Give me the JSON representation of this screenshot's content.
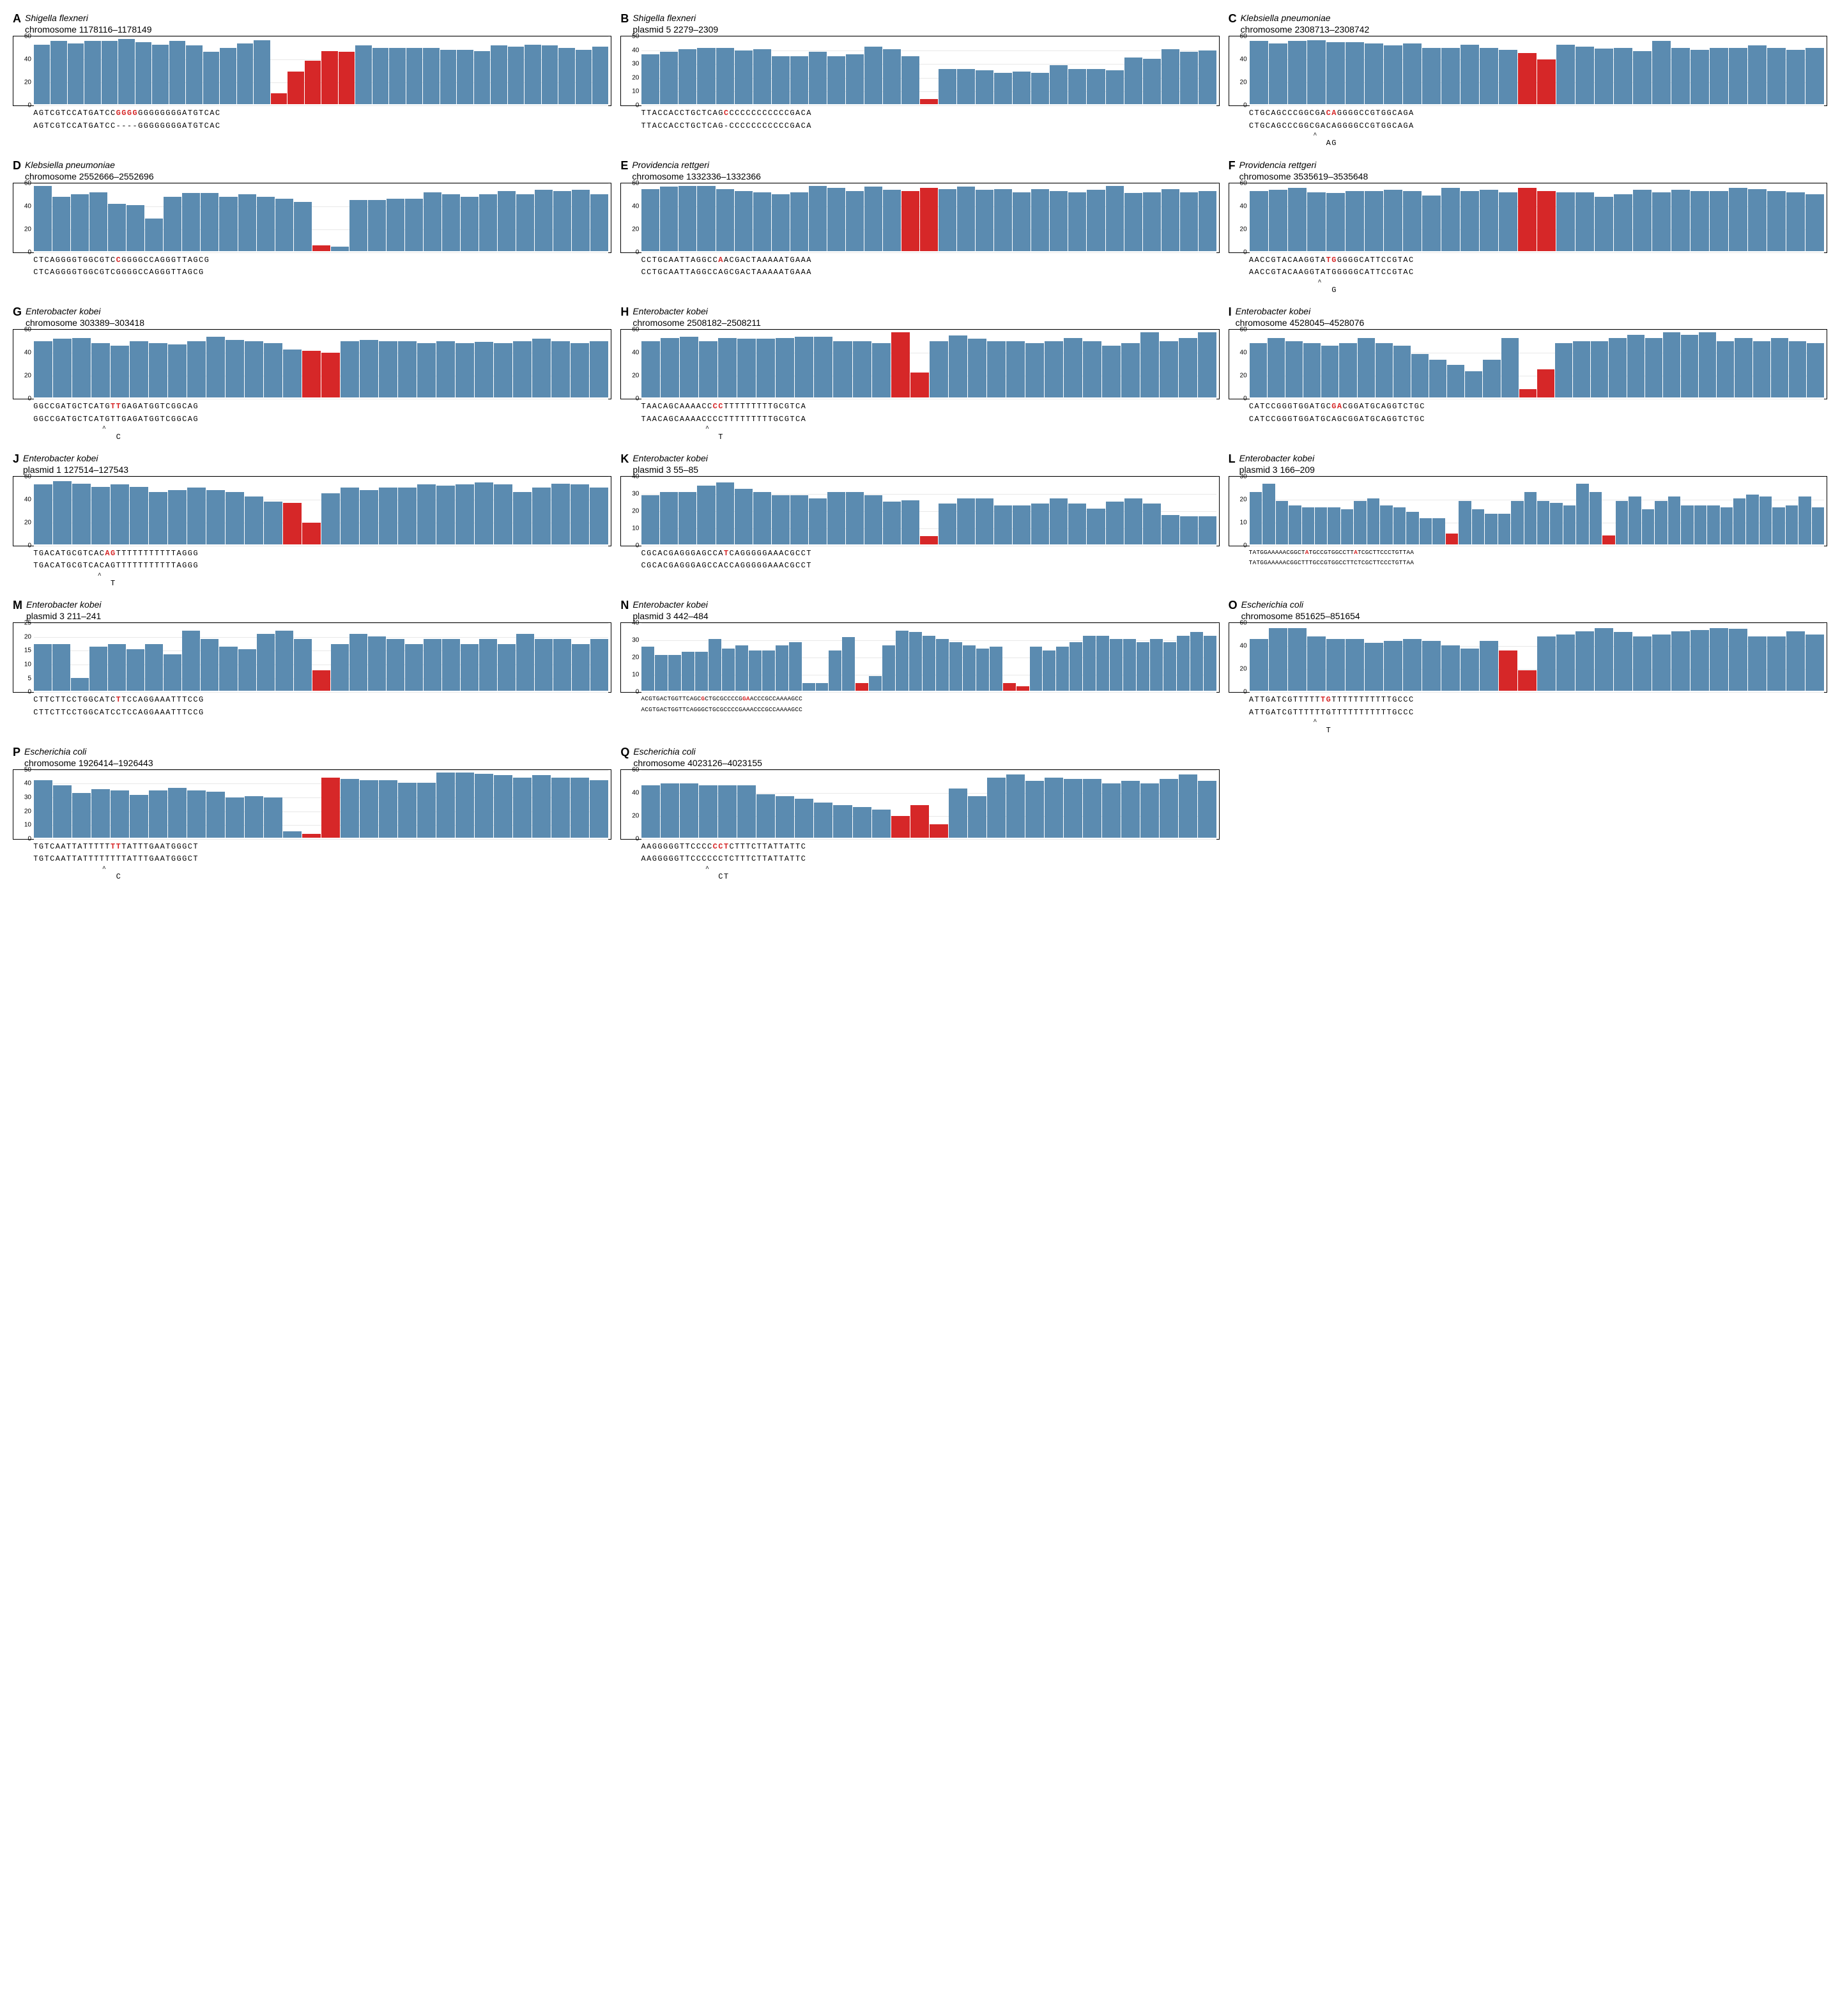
{
  "colors": {
    "blue": "#5b8bb0",
    "red": "#d62728",
    "grid": "#e8e8e8",
    "bg": "#ffffff"
  },
  "bar_width_rel": 0.9,
  "panels": [
    {
      "id": "A",
      "letter": "A",
      "organism": "Shigella flexneri",
      "location": "chromosome 1178116–1178149",
      "ylim": [
        0,
        60
      ],
      "ytick_step": 20,
      "values": [
        55,
        58,
        56,
        58,
        58,
        63,
        57,
        55,
        58,
        54,
        48,
        52,
        56,
        59,
        10,
        30,
        40,
        49,
        48,
        54,
        52,
        52,
        52,
        52,
        50,
        50,
        49,
        54,
        53,
        55,
        54,
        52,
        50,
        53
      ],
      "highlight_idx": [
        14,
        15,
        16,
        17,
        18
      ],
      "seq1": "AGTCGTCCATGATCCGGGGGGGGGGGGATGTCAC",
      "seq2": "AGTCGTCCATGATCC----GGGGGGGGATGTCAC",
      "red_chars_seq1": [
        15,
        16,
        17,
        18
      ],
      "wide": false
    },
    {
      "id": "B",
      "letter": "B",
      "organism": "Shigella flexneri",
      "location": "plasmid 5 2279–2309",
      "ylim": [
        0,
        50
      ],
      "ytick_step": 10,
      "values": [
        38,
        40,
        42,
        43,
        43,
        41,
        42,
        37,
        37,
        40,
        37,
        38,
        44,
        42,
        37,
        4,
        27,
        27,
        26,
        24,
        25,
        24,
        30,
        27,
        27,
        26,
        36,
        35,
        42,
        40,
        41
      ],
      "highlight_idx": [
        15
      ],
      "seq1": "TTACCACCTGCTCAGCCCCCCCCCCCCGACA",
      "seq2": "TTACCACCTGCTCAG-CCCCCCCCCCCGACA",
      "red_chars_seq1": [
        15
      ],
      "wide": false
    },
    {
      "id": "C",
      "letter": "C",
      "organism": "Klebsiella pneumoniae",
      "location": "chromosome 2308713–2308742",
      "ylim": [
        0,
        60
      ],
      "ytick_step": 20,
      "values": [
        58,
        56,
        58,
        59,
        57,
        57,
        56,
        54,
        56,
        52,
        52,
        55,
        52,
        50,
        47,
        41,
        55,
        53,
        51,
        52,
        49,
        58,
        52,
        50,
        52,
        52,
        54,
        52,
        50,
        52
      ],
      "highlight_idx": [
        14,
        15
      ],
      "seq1": "CTGCAGCCCGGCGACAGGGGCCGTGGCAGA",
      "seq2": "CTGCAGCCCGGCGACAGGGGCCGTGGCAGA",
      "red_chars_seq1": [
        14,
        15
      ],
      "anno_caret_pos": 14,
      "anno_text": "AG",
      "wide": false
    },
    {
      "id": "D",
      "letter": "D",
      "organism": "Klebsiella pneumoniae",
      "location": "chromosome 2552666–2552696",
      "ylim": [
        0,
        60
      ],
      "ytick_step": 20,
      "values": [
        64,
        50,
        52,
        54,
        43,
        42,
        30,
        50,
        53,
        53,
        50,
        52,
        50,
        48,
        45,
        5,
        4,
        47,
        47,
        48,
        48,
        54,
        52,
        50,
        52,
        55,
        52,
        56,
        55,
        56,
        52
      ],
      "highlight_idx": [
        15
      ],
      "seq1": "CTCAGGGGTGGCGTCCGGGGCCAGGGTTAGCG",
      "seq2": "CTCAGGGGTGGCGTCGGGGCCAGGGTTAGCG",
      "red_chars_seq1": [
        15
      ],
      "wide": false
    },
    {
      "id": "E",
      "letter": "E",
      "organism": "Providencia rettgeri",
      "location": "chromosome 1332336–1332366",
      "ylim": [
        0,
        60
      ],
      "ytick_step": 20,
      "values": [
        57,
        59,
        62,
        60,
        57,
        55,
        54,
        52,
        54,
        60,
        58,
        55,
        59,
        56,
        55,
        58,
        57,
        59,
        56,
        57,
        54,
        57,
        55,
        54,
        56,
        60,
        53,
        54,
        57,
        54,
        55
      ],
      "highlight_idx": [
        14,
        15
      ],
      "seq1": "CCTGCAATTAGGCCAACGACTAAAAATGAAA",
      "seq2": "CCTGCAATTAGGCCAGCGACTAAAAATGAAA",
      "red_chars_seq1": [
        14
      ],
      "wide": false
    },
    {
      "id": "F",
      "letter": "F",
      "organism": "Providencia rettgeri",
      "location": "chromosome 3535619–3535648",
      "ylim": [
        0,
        60
      ],
      "ytick_step": 20,
      "values": [
        55,
        56,
        58,
        54,
        53,
        55,
        55,
        56,
        55,
        51,
        58,
        55,
        56,
        54,
        58,
        55,
        54,
        54,
        50,
        52,
        56,
        54,
        56,
        55,
        55,
        58,
        57,
        55,
        54,
        52
      ],
      "highlight_idx": [
        14,
        15
      ],
      "seq1": "AACCGTACAAGGTATGGGGGCATTCCGTAC",
      "seq2": "AACCGTACAAGGTATGGGGGCATTCCGTAC",
      "red_chars_seq1": [
        14,
        15
      ],
      "anno_caret_pos": 15,
      "anno_text": "G",
      "wide": false
    },
    {
      "id": "G",
      "letter": "G",
      "organism": "Enterobacter kobei",
      "location": "chromosome 303389–303418",
      "ylim": [
        0,
        60
      ],
      "ytick_step": 20,
      "values": [
        52,
        54,
        55,
        50,
        48,
        52,
        50,
        49,
        52,
        56,
        53,
        52,
        50,
        44,
        43,
        41,
        52,
        53,
        52,
        52,
        50,
        52,
        50,
        51,
        50,
        52,
        54,
        52,
        50,
        52
      ],
      "highlight_idx": [
        14,
        15
      ],
      "seq1": "GGCCGATGCTCATGTTGAGATGGTCGGCAG",
      "seq2": "GGCCGATGCTCATGTTGAGATGGTCGGCAG",
      "red_chars_seq1": [
        14,
        15
      ],
      "anno_caret_pos": 15,
      "anno_text": "C",
      "wide": false
    },
    {
      "id": "H",
      "letter": "H",
      "organism": "Enterobacter kobei",
      "location": "chromosome 2508182–2508211",
      "ylim": [
        0,
        60
      ],
      "ytick_step": 20,
      "values": [
        52,
        55,
        56,
        52,
        55,
        54,
        54,
        55,
        56,
        56,
        52,
        52,
        50,
        61,
        23,
        52,
        57,
        54,
        52,
        52,
        50,
        52,
        55,
        52,
        48,
        50,
        60,
        52,
        55,
        63
      ],
      "highlight_idx": [
        13,
        14
      ],
      "seq1": "TAACAGCAAAACCCCTTTTTTTTTGCGTCA",
      "seq2": "TAACAGCAAAACCCCTTTTTTTTTGCGTCA",
      "red_chars_seq1": [
        13,
        14
      ],
      "anno_caret_pos": 14,
      "anno_text": "T",
      "wide": false
    },
    {
      "id": "I",
      "letter": "I",
      "organism": "Enterobacter kobei",
      "location": "chromosome 4528045–4528076",
      "ylim": [
        0,
        60
      ],
      "ytick_step": 20,
      "values": [
        50,
        55,
        52,
        50,
        48,
        50,
        55,
        50,
        48,
        40,
        35,
        30,
        24,
        35,
        55,
        8,
        26,
        50,
        52,
        52,
        55,
        58,
        55,
        60,
        58,
        60,
        52,
        55,
        52,
        55,
        52,
        50
      ],
      "highlight_idx": [
        15,
        16
      ],
      "seq1": "CATCCGGGTGGATGCGACGGATGCAGGTCTGC",
      "seq2": "CATCCGGGTGGATGCAGCGGATGCAGGTCTGC",
      "red_chars_seq1": [
        15,
        16
      ],
      "wide": false
    },
    {
      "id": "J",
      "letter": "J",
      "organism": "Enterobacter kobei",
      "location": "plasmid 1 127514–127543",
      "ylim": [
        0,
        60
      ],
      "ytick_step": 20,
      "values": [
        55,
        58,
        56,
        53,
        55,
        53,
        48,
        50,
        52,
        50,
        48,
        44,
        39,
        38,
        20,
        47,
        52,
        50,
        52,
        52,
        55,
        54,
        55,
        57,
        55,
        48,
        52,
        56,
        55,
        52
      ],
      "highlight_idx": [
        13,
        14
      ],
      "seq1": "TGACATGCGTCACAGTTTTTTTTTTTAGGG",
      "seq2": "TGACATGCGTCACAGTTTTTTTTTTTAGGG",
      "red_chars_seq1": [
        13,
        14
      ],
      "anno_caret_pos": 14,
      "anno_text": "T",
      "wide": false
    },
    {
      "id": "K",
      "letter": "K",
      "organism": "Enterobacter kobei",
      "location": "plasmid 3 55–85",
      "ylim": [
        0,
        40
      ],
      "ytick_step": 10,
      "values": [
        30,
        32,
        32,
        36,
        38,
        34,
        32,
        30,
        30,
        28,
        32,
        32,
        30,
        26,
        27,
        5,
        25,
        28,
        28,
        24,
        24,
        25,
        28,
        25,
        22,
        26,
        28,
        25,
        18,
        17,
        17
      ],
      "highlight_idx": [
        15
      ],
      "seq1": "CGCACGAGGGAGCCATCAGGGGGAAACGCCT",
      "seq2": "CGCACGAGGGAGCCACCAGGGGGAAACGCCT",
      "red_chars_seq1": [
        15
      ],
      "wide": false
    },
    {
      "id": "L",
      "letter": "L",
      "organism": "Enterobacter kobei",
      "location": "plasmid 3 166–209",
      "ylim": [
        0,
        30
      ],
      "ytick_step": 10,
      "values": [
        24,
        28,
        20,
        18,
        17,
        17,
        17,
        16,
        20,
        21,
        18,
        17,
        15,
        12,
        12,
        5,
        20,
        16,
        14,
        14,
        20,
        24,
        20,
        19,
        18,
        28,
        24,
        4,
        20,
        22,
        16,
        20,
        22,
        18,
        18,
        18,
        17,
        21,
        23,
        22,
        17,
        18,
        22,
        17
      ],
      "highlight_idx": [
        15,
        27
      ],
      "seq1": "TATGGAAAAACGGCTATGCCGTGGCCTTATCGCTTCCCTGTTAA",
      "seq2": "TATGGAAAAACGGCTTTGCCGTGGCCTTCTCGCTTCCCTGTTAA",
      "red_chars_seq1": [
        15,
        28
      ],
      "wide": true
    },
    {
      "id": "M",
      "letter": "M",
      "organism": "Enterobacter kobei",
      "location": "plasmid 3 211–241",
      "ylim": [
        0,
        25
      ],
      "ytick_step": 5,
      "values": [
        18,
        18,
        5,
        17,
        18,
        16,
        18,
        14,
        23,
        20,
        17,
        16,
        22,
        23,
        20,
        8,
        18,
        22,
        21,
        20,
        18,
        20,
        20,
        18,
        20,
        18,
        22,
        20,
        20,
        18,
        20
      ],
      "highlight_idx": [
        15
      ],
      "seq1": "CTTCTTCCTGGCATCTTCCAGGAAATTTCCG",
      "seq2": "CTTCTTCCTGGCATCCTCCAGGAAATTTCCG",
      "red_chars_seq1": [
        15
      ],
      "wide": false
    },
    {
      "id": "N",
      "letter": "N",
      "organism": "Enterobacter kobei",
      "location": "plasmid 3 442–484",
      "ylim": [
        0,
        40
      ],
      "ytick_step": 10,
      "values": [
        27,
        22,
        22,
        24,
        24,
        32,
        26,
        28,
        25,
        25,
        28,
        30,
        5,
        5,
        25,
        33,
        5,
        9,
        28,
        37,
        36,
        34,
        32,
        30,
        28,
        26,
        27,
        5,
        3,
        27,
        25,
        27,
        30,
        34,
        34,
        32,
        32,
        30,
        32,
        30,
        34,
        36,
        34
      ],
      "highlight_idx": [
        16,
        27,
        28
      ],
      "seq1": "ACGTGACTGGTTCAGCGCTGCGCCCCGGAACCCGCCAAAAGCC",
      "seq2": "ACGTGACTGGTTCAGGGCTGCGCCCCGAAACCCGCCAAAAGCC",
      "red_chars_seq1": [
        16,
        27,
        28
      ],
      "wide": true
    },
    {
      "id": "O",
      "letter": "O",
      "organism": "Escherichia coli",
      "location": "chromosome 851625–851654",
      "ylim": [
        0,
        60
      ],
      "ytick_step": 20,
      "values": [
        48,
        58,
        58,
        50,
        48,
        48,
        44,
        46,
        48,
        46,
        42,
        39,
        46,
        37,
        19,
        50,
        52,
        55,
        58,
        54,
        50,
        52,
        55,
        56,
        58,
        57,
        50,
        50,
        55,
        52
      ],
      "highlight_idx": [
        13,
        14
      ],
      "seq1": "ATTGATCGTTTTTTGTTTTTTTTTTTGCCC",
      "seq2": "ATTGATCGTTTTTTGTTTTTTTTTTTGCCC",
      "red_chars_seq1": [
        13,
        14
      ],
      "anno_caret_pos": 14,
      "anno_text": "T",
      "wide": false
    },
    {
      "id": "P",
      "letter": "P",
      "organism": "Escherichia coli",
      "location": "chromosome 1926414–1926443",
      "ylim": [
        0,
        50
      ],
      "ytick_step": 10,
      "values": [
        44,
        40,
        34,
        37,
        36,
        33,
        36,
        38,
        36,
        35,
        31,
        32,
        31,
        5,
        3,
        46,
        45,
        44,
        44,
        42,
        42,
        52,
        50,
        49,
        48,
        46,
        48,
        46,
        46,
        44
      ],
      "highlight_idx": [
        14,
        15
      ],
      "seq1": "TGTCAATTATTTTTTTTATTTGAATGGGCT",
      "seq2": "TGTCAATTATTTTTTTTATTTGAATGGGCT",
      "red_chars_seq1": [
        14,
        15
      ],
      "anno_caret_pos": 15,
      "anno_text": "C",
      "wide": false
    },
    {
      "id": "Q",
      "letter": "Q",
      "organism": "Escherichia coli",
      "location": "chromosome 4023126–4023155",
      "ylim": [
        0,
        60
      ],
      "ytick_step": 20,
      "values": [
        48,
        50,
        50,
        48,
        48,
        48,
        40,
        38,
        36,
        32,
        30,
        28,
        26,
        20,
        30,
        12,
        45,
        38,
        55,
        58,
        52,
        55,
        54,
        54,
        50,
        52,
        50,
        54,
        58,
        52
      ],
      "highlight_idx": [
        13,
        14,
        15
      ],
      "seq1": "AAGGGGGTTCCCCCCTCTTTCTTATTATTC",
      "seq2": "AAGGGGGTTCCCCCCTCTTTCTTATTATTC",
      "red_chars_seq1": [
        13,
        14,
        15
      ],
      "anno_caret_pos": 14,
      "anno_text": "CT",
      "wide": false
    }
  ]
}
